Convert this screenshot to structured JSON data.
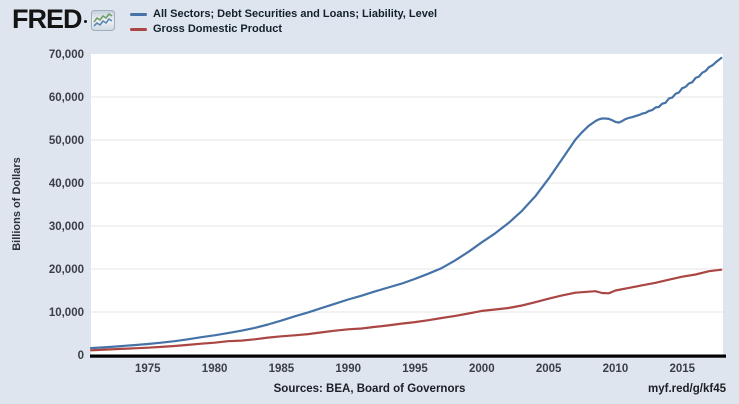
{
  "app": {
    "brand": "FRED"
  },
  "colors": {
    "background": "#dee5ee",
    "plot_background": "#ffffff",
    "gridline": "#e6e6e6",
    "axis_line": "#000000",
    "series_blue": "#4572a7",
    "series_red": "#aa4643"
  },
  "legend": [
    {
      "label": "All Sectors; Debt Securities and Loans; Liability, Level",
      "color": "#4572a7"
    },
    {
      "label": "Gross Domestic Product",
      "color": "#aa4643"
    }
  ],
  "footer": {
    "sources": "Sources: BEA, Board of Governors",
    "shortlink": "myf.red/g/kf45"
  },
  "chart_data": {
    "type": "line",
    "title": "",
    "xlabel": "",
    "ylabel": "Billions of Dollars",
    "xlim": [
      1970.75,
      2018.05
    ],
    "ylim": [
      0,
      70000
    ],
    "grid": "horizontal",
    "legend_position": "top-left",
    "yticks": [
      0,
      10000,
      20000,
      30000,
      40000,
      50000,
      60000,
      70000
    ],
    "ytick_labels": [
      "0",
      "10,000",
      "20,000",
      "30,000",
      "40,000",
      "50,000",
      "60,000",
      "70,000"
    ],
    "xticks": [
      1975,
      1980,
      1985,
      1990,
      1995,
      2000,
      2005,
      2010,
      2015
    ],
    "xtick_labels": [
      "1975",
      "1980",
      "1985",
      "1990",
      "1995",
      "2000",
      "2005",
      "2010",
      "2015"
    ],
    "series": [
      {
        "name": "All Sectors; Debt Securities and Loans; Liability, Level",
        "color": "#4572a7",
        "points": [
          [
            1970.75,
            1600
          ],
          [
            1971,
            1660
          ],
          [
            1972,
            1840
          ],
          [
            1973,
            2070
          ],
          [
            1974,
            2310
          ],
          [
            1975,
            2560
          ],
          [
            1976,
            2850
          ],
          [
            1977,
            3210
          ],
          [
            1978,
            3660
          ],
          [
            1979,
            4150
          ],
          [
            1980,
            4580
          ],
          [
            1981,
            5090
          ],
          [
            1982,
            5660
          ],
          [
            1983,
            6300
          ],
          [
            1984,
            7100
          ],
          [
            1985,
            8000
          ],
          [
            1986,
            9000
          ],
          [
            1987,
            9900
          ],
          [
            1988,
            10900
          ],
          [
            1989,
            11900
          ],
          [
            1990,
            12900
          ],
          [
            1991,
            13800
          ],
          [
            1992,
            14800
          ],
          [
            1993,
            15700
          ],
          [
            1994,
            16600
          ],
          [
            1995,
            17700
          ],
          [
            1996,
            18900
          ],
          [
            1997,
            20200
          ],
          [
            1998,
            22000
          ],
          [
            1999,
            24000
          ],
          [
            2000,
            26200
          ],
          [
            2001,
            28300
          ],
          [
            2002,
            30700
          ],
          [
            2003,
            33500
          ],
          [
            2004,
            36900
          ],
          [
            2005,
            41000
          ],
          [
            2006,
            45500
          ],
          [
            2007,
            50100
          ],
          [
            2007.5,
            51800
          ],
          [
            2008,
            53300
          ],
          [
            2008.5,
            54400
          ],
          [
            2008.75,
            54800
          ],
          [
            2009,
            55000
          ],
          [
            2009.25,
            55000
          ],
          [
            2009.5,
            54900
          ],
          [
            2009.75,
            54600
          ],
          [
            2010,
            54200
          ],
          [
            2010.25,
            54050
          ],
          [
            2010.5,
            54400
          ],
          [
            2010.75,
            54850
          ],
          [
            2011,
            55150
          ],
          [
            2011.25,
            55300
          ],
          [
            2011.5,
            55550
          ],
          [
            2011.75,
            55800
          ],
          [
            2012,
            56150
          ],
          [
            2012.25,
            56300
          ],
          [
            2012.5,
            56750
          ],
          [
            2012.75,
            56950
          ],
          [
            2013,
            57550
          ],
          [
            2013.25,
            57700
          ],
          [
            2013.5,
            58450
          ],
          [
            2013.75,
            58650
          ],
          [
            2014,
            59650
          ],
          [
            2014.25,
            59850
          ],
          [
            2014.5,
            60750
          ],
          [
            2014.75,
            61050
          ],
          [
            2015,
            62050
          ],
          [
            2015.25,
            62350
          ],
          [
            2015.5,
            63150
          ],
          [
            2015.75,
            63450
          ],
          [
            2016,
            64450
          ],
          [
            2016.25,
            64750
          ],
          [
            2016.5,
            65650
          ],
          [
            2016.75,
            66050
          ],
          [
            2017,
            66950
          ],
          [
            2017.25,
            67350
          ],
          [
            2017.5,
            68050
          ],
          [
            2017.75,
            68650
          ],
          [
            2017.92,
            69100
          ]
        ]
      },
      {
        "name": "Gross Domestic Product",
        "color": "#aa4643",
        "points": [
          [
            1970.75,
            1085
          ],
          [
            1971,
            1130
          ],
          [
            1972,
            1280
          ],
          [
            1973,
            1430
          ],
          [
            1974,
            1550
          ],
          [
            1975,
            1690
          ],
          [
            1976,
            1880
          ],
          [
            1977,
            2090
          ],
          [
            1978,
            2360
          ],
          [
            1979,
            2630
          ],
          [
            1980,
            2860
          ],
          [
            1981,
            3210
          ],
          [
            1982,
            3340
          ],
          [
            1983,
            3640
          ],
          [
            1984,
            4040
          ],
          [
            1985,
            4350
          ],
          [
            1986,
            4590
          ],
          [
            1987,
            4870
          ],
          [
            1988,
            5250
          ],
          [
            1989,
            5660
          ],
          [
            1990,
            5980
          ],
          [
            1991,
            6170
          ],
          [
            1992,
            6540
          ],
          [
            1993,
            6880
          ],
          [
            1994,
            7310
          ],
          [
            1995,
            7660
          ],
          [
            1996,
            8100
          ],
          [
            1997,
            8610
          ],
          [
            1998,
            9090
          ],
          [
            1999,
            9660
          ],
          [
            2000,
            10250
          ],
          [
            2001,
            10580
          ],
          [
            2002,
            10940
          ],
          [
            2003,
            11510
          ],
          [
            2004,
            12270
          ],
          [
            2005,
            13090
          ],
          [
            2006,
            13860
          ],
          [
            2007,
            14480
          ],
          [
            2008,
            14720
          ],
          [
            2008.5,
            14840
          ],
          [
            2009,
            14420
          ],
          [
            2009.5,
            14350
          ],
          [
            2010,
            14990
          ],
          [
            2011,
            15600
          ],
          [
            2012,
            16200
          ],
          [
            2013,
            16780
          ],
          [
            2014,
            17520
          ],
          [
            2015,
            18220
          ],
          [
            2016,
            18710
          ],
          [
            2017,
            19490
          ],
          [
            2017.92,
            19830
          ]
        ]
      }
    ]
  }
}
